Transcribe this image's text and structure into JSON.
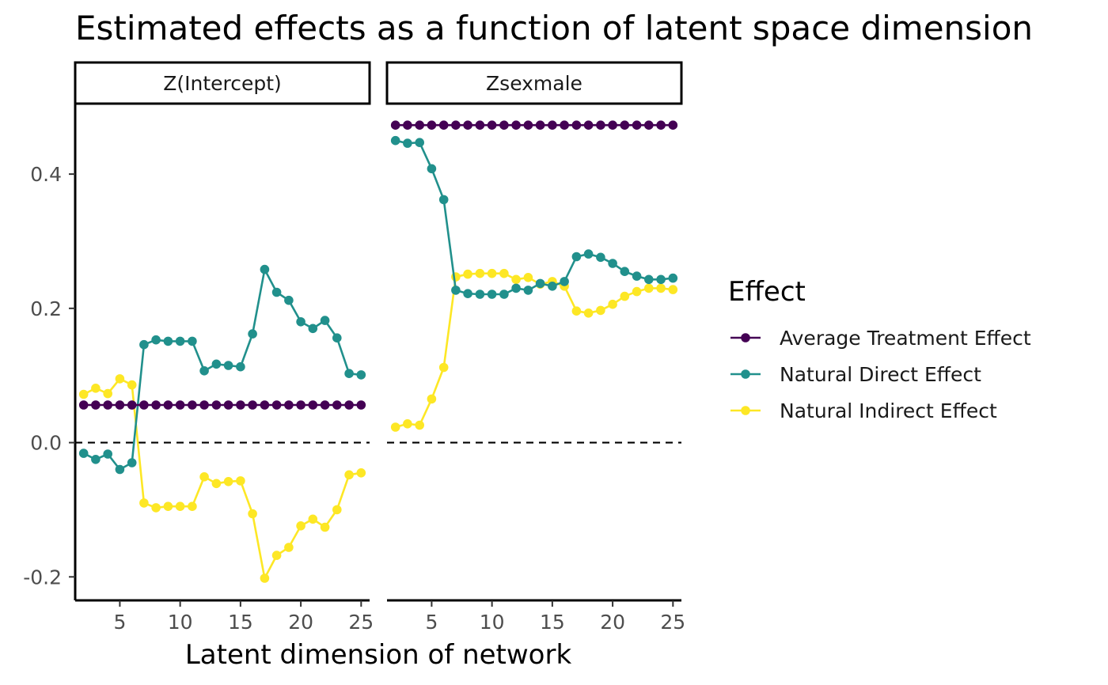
{
  "chart_data": {
    "type": "line",
    "title": "Estimated effects as a function of latent space dimension",
    "xlabel": "Latent dimension of network",
    "ylabel": "",
    "xlim": [
      1.3,
      25.7
    ],
    "ylim": [
      -0.235,
      0.505
    ],
    "x_ticks": [
      5,
      10,
      15,
      20,
      25
    ],
    "x_tick_labels": [
      "5",
      "10",
      "15",
      "20",
      "25"
    ],
    "y_ticks": [
      -0.2,
      0.0,
      0.2,
      0.4
    ],
    "y_tick_labels": [
      "-0.2",
      "0.0",
      "0.2",
      "0.4"
    ],
    "reference_line": {
      "y": 0,
      "style": "dashed",
      "color": "#000000"
    },
    "grid": false,
    "legend": {
      "title": "Effect",
      "position": "right",
      "entries": [
        {
          "name": "Average Treatment Effect",
          "color": "#440154"
        },
        {
          "name": "Natural Direct Effect",
          "color": "#21908C"
        },
        {
          "name": "Natural Indirect Effect",
          "color": "#FDE725"
        }
      ]
    },
    "x": [
      2,
      3,
      4,
      5,
      6,
      7,
      8,
      9,
      10,
      11,
      12,
      13,
      14,
      15,
      16,
      17,
      18,
      19,
      20,
      21,
      22,
      23,
      24,
      25
    ],
    "facets": [
      {
        "label": "Z(Intercept)",
        "series": [
          {
            "name": "Natural Indirect Effect",
            "color": "#FDE725",
            "values": [
              0.072,
              0.081,
              0.073,
              0.095,
              0.086,
              -0.09,
              -0.097,
              -0.095,
              -0.095,
              -0.095,
              -0.051,
              -0.061,
              -0.058,
              -0.057,
              -0.106,
              -0.202,
              -0.168,
              -0.156,
              -0.124,
              -0.114,
              -0.126,
              -0.1,
              -0.048,
              -0.045
            ]
          },
          {
            "name": "Natural Direct Effect",
            "color": "#21908C",
            "values": [
              -0.016,
              -0.025,
              -0.017,
              -0.04,
              -0.03,
              0.146,
              0.153,
              0.151,
              0.151,
              0.151,
              0.107,
              0.117,
              0.115,
              0.113,
              0.162,
              0.258,
              0.224,
              0.212,
              0.18,
              0.17,
              0.182,
              0.156,
              0.103,
              0.101
            ]
          },
          {
            "name": "Average Treatment Effect",
            "color": "#440154",
            "values": [
              0.056,
              0.056,
              0.056,
              0.056,
              0.056,
              0.056,
              0.056,
              0.056,
              0.056,
              0.056,
              0.056,
              0.056,
              0.056,
              0.056,
              0.056,
              0.056,
              0.056,
              0.056,
              0.056,
              0.056,
              0.056,
              0.056,
              0.056,
              0.056
            ]
          }
        ]
      },
      {
        "label": "Zsexmale",
        "series": [
          {
            "name": "Natural Indirect Effect",
            "color": "#FDE725",
            "values": [
              0.023,
              0.028,
              0.026,
              0.065,
              0.112,
              0.247,
              0.251,
              0.252,
              0.252,
              0.252,
              0.243,
              0.246,
              0.236,
              0.24,
              0.233,
              0.196,
              0.193,
              0.197,
              0.206,
              0.218,
              0.225,
              0.23,
              0.23,
              0.228
            ]
          },
          {
            "name": "Natural Direct Effect",
            "color": "#21908C",
            "values": [
              0.45,
              0.446,
              0.447,
              0.408,
              0.362,
              0.227,
              0.222,
              0.221,
              0.221,
              0.221,
              0.23,
              0.227,
              0.237,
              0.233,
              0.24,
              0.277,
              0.281,
              0.276,
              0.267,
              0.255,
              0.248,
              0.243,
              0.243,
              0.245
            ]
          },
          {
            "name": "Average Treatment Effect",
            "color": "#440154",
            "values": [
              0.473,
              0.473,
              0.473,
              0.473,
              0.473,
              0.473,
              0.473,
              0.473,
              0.473,
              0.473,
              0.473,
              0.473,
              0.473,
              0.473,
              0.473,
              0.473,
              0.473,
              0.473,
              0.473,
              0.473,
              0.473,
              0.473,
              0.473,
              0.473
            ]
          }
        ]
      }
    ]
  }
}
